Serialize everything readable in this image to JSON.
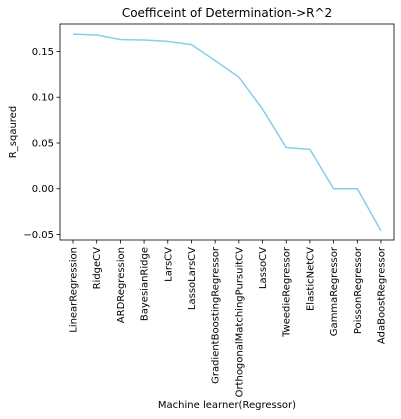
{
  "chart_data": {
    "type": "line",
    "title": "Coefficeint of Determination->R^2",
    "xlabel": "Machine learner(Regressor)",
    "ylabel": "R_sqaured",
    "categories": [
      "LinearRegression",
      "RidgeCV",
      "ARDRegression",
      "BayesianRidge",
      "LarsCV",
      "LassoLarsCV",
      "GradientBoostingRegressor",
      "OrthogonalMatchingPursuitCV",
      "LassoCV",
      "TweedieRegressor",
      "ElasticNetCV",
      "GammaRegressor",
      "PoissonRegressor",
      "AdaBoostRegressor"
    ],
    "series": [
      {
        "values": [
          0.169,
          0.168,
          0.163,
          0.1625,
          0.161,
          0.1575,
          0.14,
          0.122,
          0.087,
          0.045,
          0.043,
          0.0,
          0.0,
          -0.046
        ],
        "color": "#87ceeb"
      }
    ],
    "ylim": [
      -0.056,
      0.18
    ],
    "yticks": [
      -0.05,
      0.0,
      0.05,
      0.1,
      0.15
    ],
    "ytick_labels": [
      "−0.05",
      "0.00",
      "0.05",
      "0.10",
      "0.15"
    ],
    "grid": false,
    "legend": false
  }
}
